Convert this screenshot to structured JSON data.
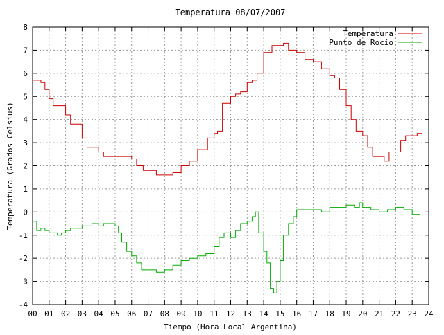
{
  "chart_data": {
    "type": "line",
    "title": "Temperatura 08/07/2007",
    "xlabel": "Tiempo (Hora Local Argentina)",
    "ylabel": "Temperatura (Grados Celsius)",
    "xlim": [
      0,
      24
    ],
    "ylim": [
      -4,
      8
    ],
    "x_ticks": [
      "00",
      "01",
      "02",
      "03",
      "04",
      "05",
      "06",
      "07",
      "08",
      "09",
      "10",
      "11",
      "12",
      "13",
      "14",
      "15",
      "16",
      "17",
      "18",
      "19",
      "20",
      "21",
      "22",
      "23",
      "24"
    ],
    "y_ticks": [
      8,
      7,
      6,
      5,
      4,
      3,
      2,
      1,
      0,
      -1,
      -2,
      -3,
      -4
    ],
    "grid": true,
    "legend_position": "top-right",
    "series": [
      {
        "name": "Temperatura",
        "color": "#cc0000",
        "x": [
          0,
          0.5,
          0.75,
          1.0,
          1.25,
          1.5,
          2.0,
          2.3,
          2.6,
          3.0,
          3.3,
          3.6,
          4.0,
          4.3,
          4.5,
          5.0,
          5.5,
          6.0,
          6.3,
          6.7,
          7.0,
          7.5,
          8.0,
          8.5,
          9.0,
          9.5,
          10.0,
          10.3,
          10.6,
          11.0,
          11.2,
          11.5,
          12.0,
          12.3,
          12.6,
          13.0,
          13.3,
          13.6,
          14.0,
          14.5,
          15.0,
          15.2,
          15.5,
          16.0,
          16.5,
          17.0,
          17.5,
          18.0,
          18.3,
          18.6,
          19.0,
          19.3,
          19.6,
          20.0,
          20.3,
          20.6,
          21.0,
          21.3,
          21.6,
          22.0,
          22.3,
          22.6,
          23.0,
          23.3,
          23.6
        ],
        "y": [
          5.7,
          5.6,
          5.3,
          4.9,
          4.6,
          4.6,
          4.2,
          3.8,
          3.8,
          3.2,
          2.8,
          2.8,
          2.6,
          2.4,
          2.4,
          2.4,
          2.4,
          2.3,
          2.0,
          1.8,
          1.8,
          1.6,
          1.6,
          1.7,
          2.0,
          2.2,
          2.7,
          2.7,
          3.2,
          3.4,
          3.5,
          4.7,
          5.0,
          5.1,
          5.2,
          5.6,
          5.7,
          6.0,
          6.9,
          7.2,
          7.2,
          7.3,
          7.0,
          6.9,
          6.6,
          6.5,
          6.2,
          5.9,
          5.8,
          5.3,
          4.6,
          4.0,
          3.5,
          3.3,
          2.8,
          2.4,
          2.4,
          2.2,
          2.6,
          2.6,
          3.1,
          3.3,
          3.3,
          3.4,
          3.4
        ]
      },
      {
        "name": "Punto de Rocío",
        "color": "#00aa00",
        "x": [
          0,
          0.25,
          0.5,
          0.75,
          1.0,
          1.25,
          1.5,
          1.75,
          2.0,
          2.3,
          2.6,
          3.0,
          3.3,
          3.6,
          4.0,
          4.3,
          4.6,
          5.0,
          5.2,
          5.4,
          5.7,
          6.0,
          6.3,
          6.6,
          7.0,
          7.5,
          8.0,
          8.5,
          9.0,
          9.5,
          10.0,
          10.5,
          11.0,
          11.3,
          11.6,
          12.0,
          12.3,
          12.6,
          13.0,
          13.3,
          13.5,
          13.7,
          14.0,
          14.2,
          14.4,
          14.6,
          14.8,
          15.0,
          15.2,
          15.5,
          15.8,
          16.0,
          16.3,
          16.6,
          17.0,
          17.5,
          18.0,
          18.5,
          19.0,
          19.5,
          19.8,
          20.0,
          20.5,
          21.0,
          21.5,
          22.0,
          22.5,
          23.0,
          23.5
        ],
        "y": [
          -0.4,
          -0.8,
          -0.7,
          -0.8,
          -0.9,
          -0.9,
          -1.0,
          -0.9,
          -0.8,
          -0.7,
          -0.7,
          -0.6,
          -0.6,
          -0.5,
          -0.6,
          -0.5,
          -0.5,
          -0.6,
          -0.9,
          -1.3,
          -1.7,
          -1.9,
          -2.2,
          -2.5,
          -2.5,
          -2.6,
          -2.5,
          -2.3,
          -2.1,
          -2.0,
          -1.9,
          -1.8,
          -1.5,
          -1.1,
          -0.9,
          -1.1,
          -0.8,
          -0.5,
          -0.4,
          -0.2,
          0.0,
          -0.9,
          -1.7,
          -2.2,
          -3.3,
          -3.5,
          -3.0,
          -2.1,
          -1.0,
          -0.5,
          -0.2,
          0.1,
          0.1,
          0.1,
          0.1,
          0.0,
          0.2,
          0.2,
          0.3,
          0.2,
          0.4,
          0.2,
          0.1,
          0.0,
          0.1,
          0.2,
          0.1,
          -0.1,
          -0.1
        ]
      }
    ]
  }
}
